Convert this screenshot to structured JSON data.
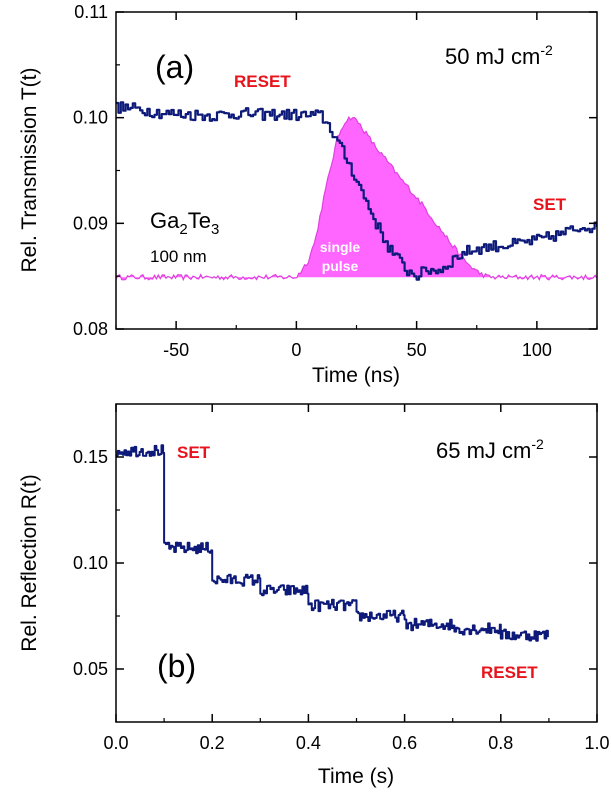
{
  "colors": {
    "trace": "#0d1a7a",
    "pulse_fill": "#ff66ff",
    "pulse_line": "#e040e0",
    "annotation": "#e8141c",
    "axis": "#000000",
    "pulse_label": "#ffffff"
  },
  "chart_data": [
    {
      "type": "line",
      "panel_label": "(a)",
      "fluence": "50 mJ cm",
      "fluence_exponent": "-2",
      "xlabel": "Time (ns)",
      "ylabel": "Rel. Transmission T(t)",
      "xlim": [
        -75,
        125
      ],
      "ylim": [
        0.08,
        0.11
      ],
      "xticks": [
        -50,
        0,
        50,
        100
      ],
      "yticks": [
        "0.08",
        "0.09",
        "0.10",
        "0.11"
      ],
      "annotations": {
        "reset": "RESET",
        "set": "SET",
        "material": "Ga",
        "material_sub1": "2",
        "material_mid": "Te",
        "material_sub2": "3",
        "thickness": "100 nm",
        "pulse_line1": "single",
        "pulse_line2": "pulse"
      },
      "series": [
        {
          "role": "transmission",
          "x": [
            -75,
            -65,
            -55,
            -45,
            -35,
            -25,
            -15,
            -5,
            5,
            10,
            14,
            18,
            22,
            26,
            30,
            34,
            38,
            42,
            46,
            50,
            55,
            60,
            65,
            70,
            75,
            80,
            90,
            100,
            110,
            120,
            125
          ],
          "y": [
            0.101,
            0.1008,
            0.1004,
            0.1003,
            0.1002,
            0.1004,
            0.1003,
            0.1003,
            0.1002,
            0.1002,
            0.099,
            0.0972,
            0.0955,
            0.0935,
            0.0915,
            0.0895,
            0.0878,
            0.0866,
            0.0855,
            0.0851,
            0.0856,
            0.0856,
            0.0866,
            0.0873,
            0.0876,
            0.0878,
            0.088,
            0.0884,
            0.089,
            0.0898,
            0.0895
          ]
        },
        {
          "role": "pulse",
          "x": [
            -75,
            0,
            2,
            5,
            8,
            11,
            14,
            17,
            20,
            23,
            26,
            29,
            33,
            38,
            43,
            48,
            53,
            58,
            63,
            68,
            72,
            76,
            80,
            85,
            125
          ],
          "y": [
            0.0849,
            0.0849,
            0.0855,
            0.0865,
            0.0885,
            0.092,
            0.095,
            0.098,
            0.0996,
            0.1001,
            0.0995,
            0.0985,
            0.0972,
            0.0958,
            0.0943,
            0.093,
            0.0916,
            0.09,
            0.0885,
            0.087,
            0.086,
            0.0853,
            0.0849,
            0.0849,
            0.0849
          ]
        }
      ]
    },
    {
      "type": "line",
      "panel_label": "(b)",
      "fluence": "65 mJ cm",
      "fluence_exponent": "-2",
      "xlabel": "Time (s)",
      "ylabel": "Rel. Reflection R(t)",
      "xlim": [
        0.0,
        1.0
      ],
      "ylim": [
        0.025,
        0.175
      ],
      "xticks": [
        "0.0",
        "0.2",
        "0.4",
        "0.6",
        "0.8",
        "1.0"
      ],
      "yticks": [
        "0.05",
        "0.10",
        "0.15"
      ],
      "annotations": {
        "set": "SET",
        "reset": "RESET"
      },
      "series": [
        {
          "role": "reflection",
          "steps": [
            {
              "x0": 0.0,
              "x1": 0.1,
              "y": 0.153
            },
            {
              "x0": 0.1,
              "x1": 0.2,
              "y": 0.107
            },
            {
              "x0": 0.2,
              "x1": 0.3,
              "y": 0.092
            },
            {
              "x0": 0.3,
              "x1": 0.4,
              "y": 0.087
            },
            {
              "x0": 0.4,
              "x1": 0.5,
              "y": 0.08
            },
            {
              "x0": 0.5,
              "x1": 0.6,
              "y": 0.075
            },
            {
              "x0": 0.6,
              "x1": 0.7,
              "y": 0.071
            },
            {
              "x0": 0.7,
              "x1": 0.8,
              "y": 0.069
            },
            {
              "x0": 0.8,
              "x1": 0.9,
              "y": 0.066
            }
          ]
        }
      ]
    }
  ]
}
